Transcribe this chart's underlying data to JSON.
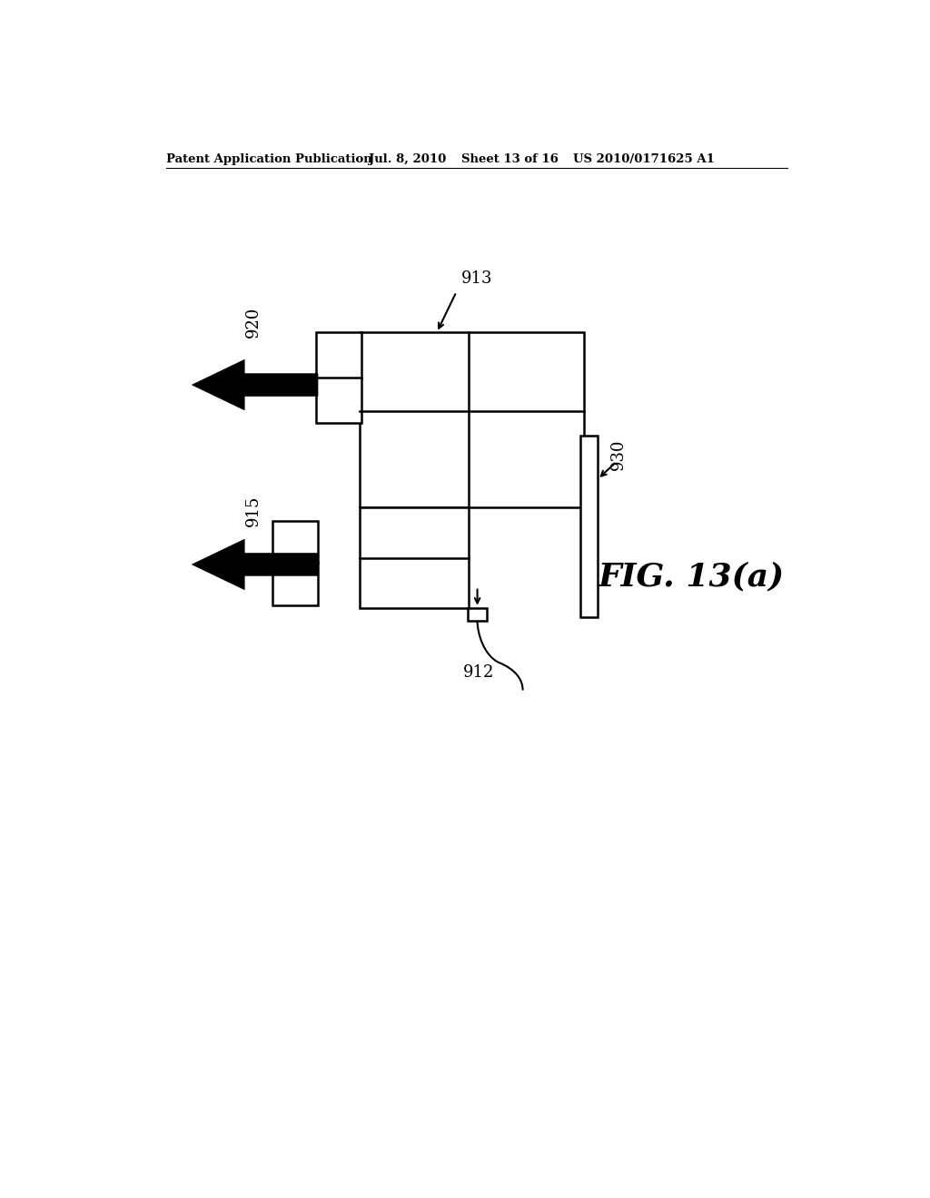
{
  "bg_color": "#ffffff",
  "header_text": "Patent Application Publication",
  "header_date": "Jul. 8, 2010",
  "header_sheet": "Sheet 13 of 16",
  "header_patent": "US 2010/0171625 A1",
  "fig_label": "FIG. 13(a)",
  "label_913": "913",
  "label_920": "920",
  "label_915": "915",
  "label_930": "930",
  "label_912": "912",
  "line_color": "#000000",
  "lw": 1.8
}
